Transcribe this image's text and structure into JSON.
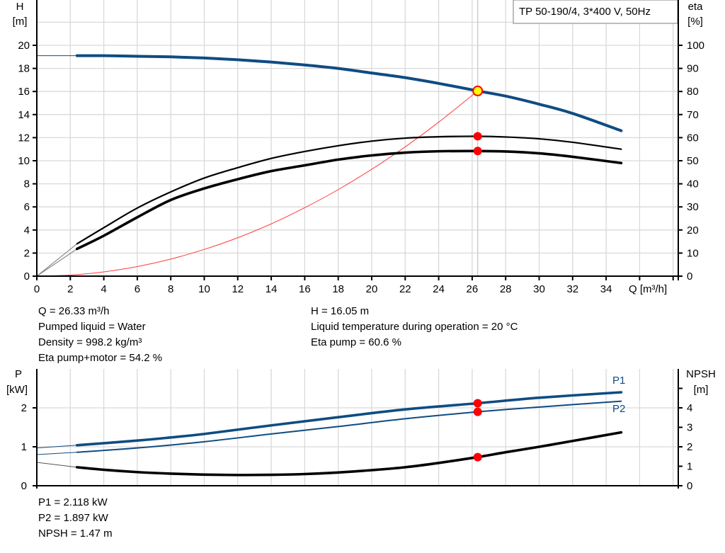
{
  "chart_data": [
    {
      "type": "line",
      "title": "TP 50-190/4, 3*400 V, 50Hz",
      "xlabel": "Q [m³/h]",
      "ylabel_left": [
        "H",
        "[m]"
      ],
      "ylabel_right": [
        "eta",
        "[%]"
      ],
      "xlim": [
        0,
        38
      ],
      "ylim_left": [
        0,
        22
      ],
      "ylim_right": [
        0,
        110
      ],
      "x_ticks": [
        0,
        2,
        4,
        6,
        8,
        10,
        12,
        14,
        16,
        18,
        20,
        22,
        24,
        26,
        28,
        30,
        32,
        34
      ],
      "y_ticks_left": [
        0,
        2,
        4,
        6,
        8,
        10,
        12,
        14,
        16,
        18,
        20
      ],
      "y_ticks_right": [
        0,
        10,
        20,
        30,
        40,
        50,
        60,
        70,
        80,
        90,
        100
      ],
      "grid": true,
      "series": [
        {
          "id": "head",
          "axis": "left",
          "color": "#0f4c81",
          "x": [
            2.4,
            4,
            6,
            8,
            10,
            12,
            14,
            16,
            18,
            20,
            22,
            24,
            26.33,
            28,
            30,
            32,
            34.9
          ],
          "y": [
            19.1,
            19.1,
            19.05,
            19.0,
            18.9,
            18.75,
            18.55,
            18.3,
            18.0,
            17.6,
            17.2,
            16.7,
            16.05,
            15.6,
            14.9,
            14.1,
            12.6
          ],
          "extension_to_zero": 19.1
        },
        {
          "id": "eta-pump",
          "axis": "right",
          "color": "#000000",
          "x": [
            2.4,
            4,
            6,
            8,
            10,
            12,
            14,
            16,
            18,
            20,
            22,
            24,
            26.33,
            28,
            30,
            32,
            34.9
          ],
          "y": [
            14,
            21,
            29.5,
            36.5,
            42.5,
            47,
            51,
            54,
            56.5,
            58.5,
            59.8,
            60.4,
            60.6,
            60.3,
            59.5,
            58,
            55
          ]
        },
        {
          "id": "eta-pump-motor",
          "axis": "right",
          "color": "#000000",
          "x": [
            2.4,
            4,
            6,
            8,
            10,
            12,
            14,
            16,
            18,
            20,
            22,
            24,
            26.33,
            28,
            30,
            32,
            34.9
          ],
          "y": [
            11.8,
            17.5,
            25.5,
            33,
            38,
            42,
            45.5,
            48,
            50.5,
            52.3,
            53.5,
            54.1,
            54.2,
            54,
            53.2,
            51.7,
            49
          ]
        },
        {
          "id": "system-curve",
          "axis": "left",
          "color": "#ff3b3b",
          "x": [
            0,
            2,
            4,
            6,
            8,
            10,
            12,
            14,
            16,
            18,
            20,
            22,
            24,
            26.33
          ],
          "y": [
            0,
            0.09,
            0.37,
            0.83,
            1.48,
            2.32,
            3.33,
            4.53,
            5.93,
            7.5,
            9.26,
            11.2,
            13.34,
            16.05
          ]
        }
      ],
      "duty_point": {
        "Q": 26.33,
        "H": 16.05,
        "eta_pump": 60.6,
        "eta_pump_motor": 54.2
      }
    },
    {
      "type": "line",
      "xlim": [
        0,
        38
      ],
      "ylabel_left": [
        "P",
        "[kW]"
      ],
      "ylabel_right": [
        "NPSH",
        "[m]"
      ],
      "ylim_left": [
        0,
        3
      ],
      "ylim_right": [
        0,
        6
      ],
      "y_ticks_left": [
        0,
        1,
        2
      ],
      "y_ticks_right": [
        0,
        1,
        2,
        3,
        4,
        5
      ],
      "grid": true,
      "series": [
        {
          "name": "P1",
          "axis": "left",
          "color": "#0f4c81",
          "x": [
            2.4,
            6,
            8,
            10,
            14,
            18,
            22,
            26.33,
            30,
            34.9
          ],
          "y": [
            1.04,
            1.16,
            1.24,
            1.33,
            1.55,
            1.76,
            1.96,
            2.118,
            2.26,
            2.4
          ],
          "extension_to_zero": 0.97
        },
        {
          "name": "P2",
          "axis": "left",
          "color": "#0f4c81",
          "x": [
            2.4,
            6,
            10,
            14,
            18,
            22,
            26.33,
            30,
            34.9
          ],
          "y": [
            0.86,
            0.97,
            1.13,
            1.33,
            1.52,
            1.72,
            1.897,
            2.02,
            2.17
          ],
          "extension_to_zero": 0.8
        },
        {
          "id": "npsh",
          "axis": "right",
          "color": "#000000",
          "x": [
            2.4,
            4,
            6,
            8,
            10,
            12,
            14,
            16,
            18,
            20,
            22,
            24,
            26.33,
            28,
            30,
            32,
            34.9
          ],
          "y": [
            0.95,
            0.82,
            0.7,
            0.62,
            0.57,
            0.55,
            0.56,
            0.6,
            0.68,
            0.8,
            0.95,
            1.17,
            1.47,
            1.72,
            2.0,
            2.3,
            2.74
          ],
          "extension_to_zero": 1.2
        }
      ],
      "duty_point": {
        "Q": 26.33,
        "P1": 2.118,
        "P2": 1.897,
        "NPSH": 1.47
      }
    }
  ],
  "info_top": {
    "left": [
      "Q = 26.33 m³/h",
      "Pumped liquid = Water",
      "Density = 998.2 kg/m³",
      "Eta pump+motor = 54.2 %"
    ],
    "right": [
      "H = 16.05 m",
      "Liquid temperature during operation = 20 °C",
      "Eta pump = 60.6 %"
    ]
  },
  "info_bottom": [
    "P1 = 2.118 kW",
    "P2 = 1.897 kW",
    "NPSH = 1.47 m"
  ]
}
